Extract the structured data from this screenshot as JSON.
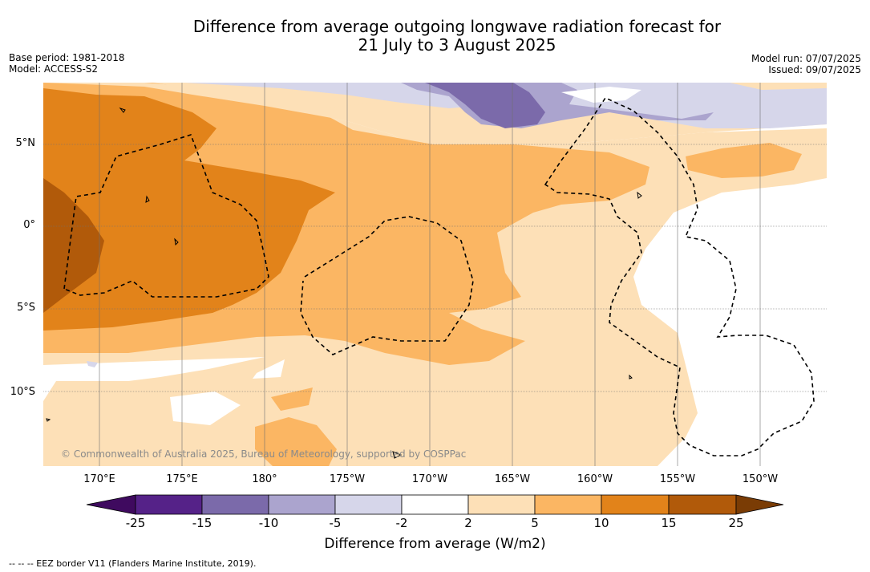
{
  "title_line1": "Difference from average outgoing longwave radiation forecast for",
  "title_line2": "21 July to 3 August 2025",
  "base_period": "Base period: 1981-2018",
  "model": "Model: ACCESS-S2",
  "model_run": "Model run: 07/07/2025",
  "issued": "Issued: 09/07/2025",
  "latitude_labels": [
    "5°N",
    "0°",
    "5°S",
    "10°S"
  ],
  "longitude_labels": [
    "170°E",
    "175°E",
    "180°",
    "175°W",
    "170°W",
    "165°W",
    "160°W",
    "155°W",
    "150°W"
  ],
  "colorbar": {
    "title": "Difference from average (W/m2)",
    "ticks": [
      "-25",
      "-15",
      "-10",
      "-5",
      "-2",
      "2",
      "5",
      "10",
      "15",
      "25"
    ],
    "colors": [
      "#3f0a5f",
      "#552288",
      "#7b6aaa",
      "#aba4ce",
      "#d6d6ea",
      "#ffffff",
      "#fde0b7",
      "#fbb663",
      "#e2831a",
      "#b15a0a",
      "#7a3c05"
    ]
  },
  "copyright": "© Commonwealth of Australia 2025, Bureau of Meteorology, supported by COSPPac",
  "footer": "-- -- -- EEZ border V11 (Flanders Marine Institute, 2019)."
}
